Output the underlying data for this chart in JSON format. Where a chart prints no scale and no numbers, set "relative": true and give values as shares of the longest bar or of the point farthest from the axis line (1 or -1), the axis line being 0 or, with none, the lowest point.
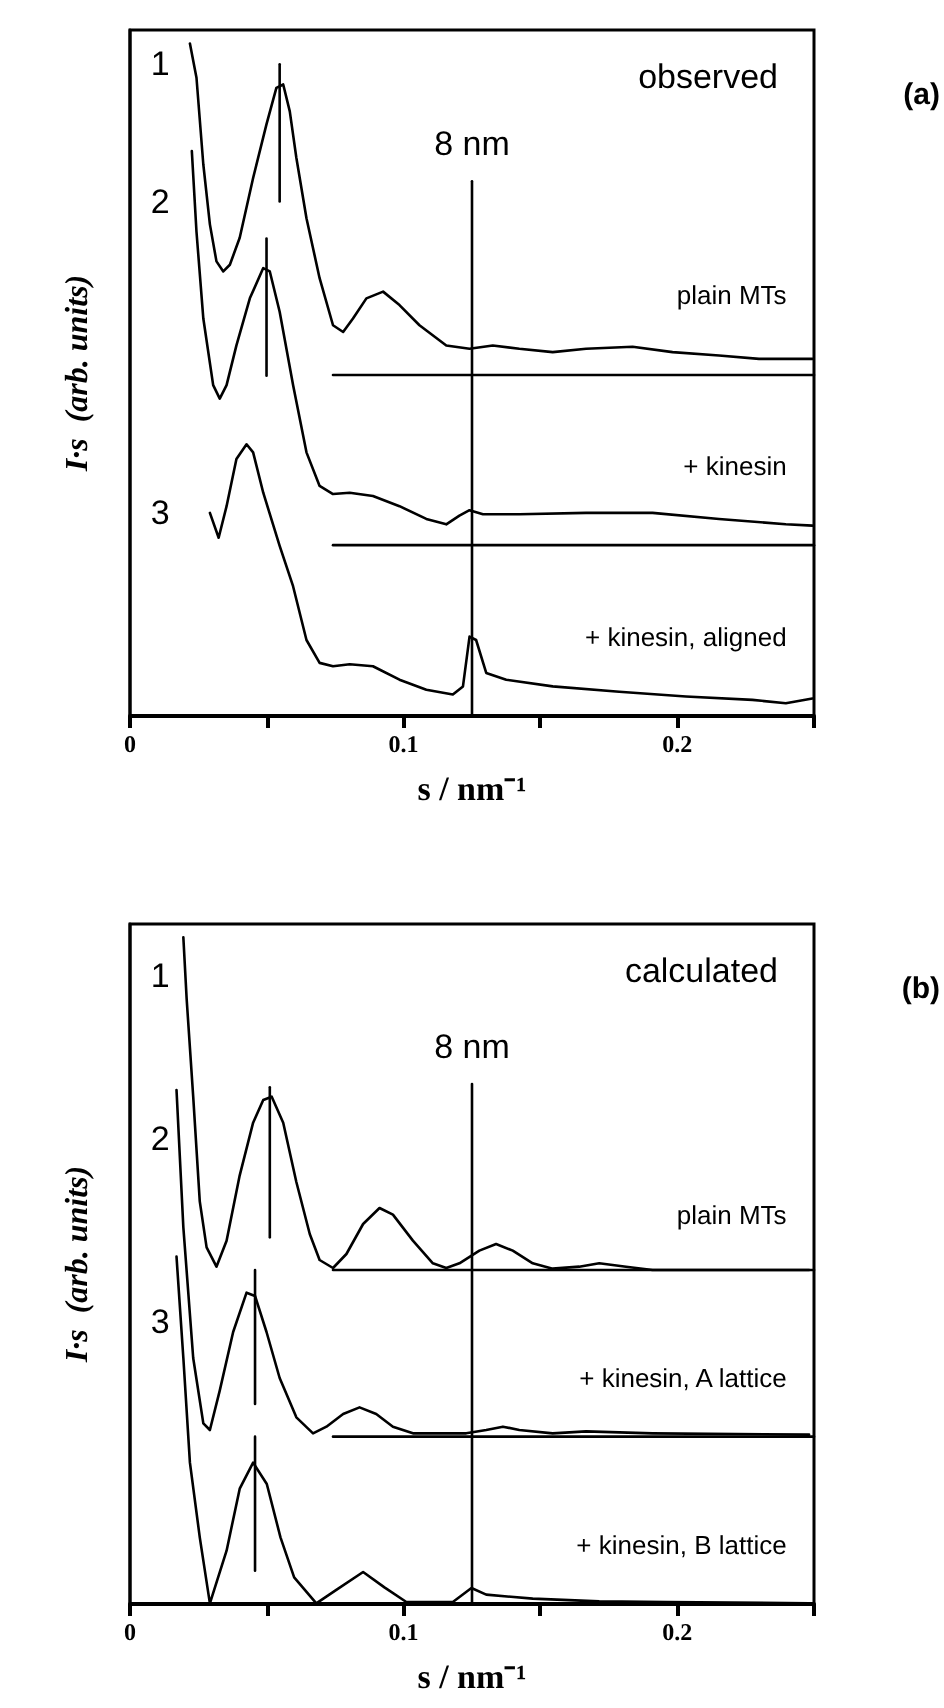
{
  "chart_data": [
    {
      "type": "line",
      "title": "observed",
      "xlabel": "s / nm⁻¹",
      "ylabel": "I·s  (arb. units)",
      "relative": true,
      "marker": "none",
      "line_style": "solid",
      "tick_labels": "x",
      "grid": false,
      "xlim": [
        0,
        0.25
      ],
      "xticks": [
        0,
        {
          "value": 0.05,
          "label": null
        },
        0.1,
        {
          "value": 0.15,
          "label": null
        },
        0.2,
        {
          "value": 0.25,
          "label": null
        }
      ],
      "series": [
        {
          "color": "#000000",
          "x": [
            0.0219,
            0.0243,
            0.0268,
            0.0292,
            0.0316,
            0.0341,
            0.0365,
            0.0401,
            0.045,
            0.0499,
            0.0535,
            0.056,
            0.0584,
            0.0608,
            0.0645,
            0.0693,
            0.0742,
            0.0779,
            0.0815,
            0.0864,
            0.0925,
            0.0985,
            0.1058,
            0.1156,
            0.1241,
            0.1326,
            0.1423,
            0.1545,
            0.1667,
            0.1837,
            0.1983,
            0.2153,
            0.2299,
            0.2494
          ],
          "values": [
            1.0,
            0.949,
            0.82,
            0.731,
            0.676,
            0.661,
            0.671,
            0.711,
            0.8,
            0.88,
            0.934,
            0.939,
            0.899,
            0.83,
            0.74,
            0.651,
            0.581,
            0.571,
            0.591,
            0.621,
            0.631,
            0.611,
            0.581,
            0.551,
            0.546,
            0.551,
            0.546,
            0.541,
            0.546,
            0.549,
            0.541,
            0.536,
            0.531,
            0.531
          ]
        },
        {
          "color": "#000000",
          "x": [
            0.0226,
            0.0243,
            0.0268,
            0.0304,
            0.0328,
            0.0353,
            0.0389,
            0.0438,
            0.0487,
            0.0511,
            0.0547,
            0.0596,
            0.0645,
            0.0693,
            0.0742,
            0.0803,
            0.0888,
            0.0985,
            0.1083,
            0.1156,
            0.1204,
            0.1241,
            0.129,
            0.1423,
            0.1667,
            0.191,
            0.2153,
            0.2397,
            0.2494
          ],
          "values": [
            0.84,
            0.72,
            0.591,
            0.492,
            0.472,
            0.492,
            0.551,
            0.621,
            0.666,
            0.661,
            0.601,
            0.492,
            0.392,
            0.342,
            0.33,
            0.332,
            0.327,
            0.312,
            0.293,
            0.285,
            0.298,
            0.306,
            0.3,
            0.3,
            0.302,
            0.302,
            0.293,
            0.285,
            0.283
          ]
        },
        {
          "color": "#000000",
          "x": [
            0.0292,
            0.0324,
            0.0353,
            0.0389,
            0.0426,
            0.045,
            0.0487,
            0.0547,
            0.0596,
            0.0645,
            0.0693,
            0.0742,
            0.0803,
            0.0888,
            0.0985,
            0.1083,
            0.118,
            0.1217,
            0.1241,
            0.1265,
            0.1302,
            0.1375,
            0.1545,
            0.1788,
            0.2032,
            0.2275,
            0.2397,
            0.2494
          ],
          "values": [
            0.302,
            0.265,
            0.312,
            0.382,
            0.404,
            0.392,
            0.332,
            0.253,
            0.193,
            0.113,
            0.079,
            0.074,
            0.077,
            0.074,
            0.054,
            0.039,
            0.032,
            0.044,
            0.118,
            0.113,
            0.064,
            0.054,
            0.044,
            0.036,
            0.029,
            0.024,
            0.019,
            0.026
          ]
        },
        {
          "color": "#000000",
          "x": [
            0.0742,
            0.25
          ],
          "values": [
            0.507,
            0.507
          ]
        },
        {
          "color": "#000000",
          "x": [
            0.0742,
            0.25
          ],
          "values": [
            0.254,
            0.254
          ]
        },
        {
          "color": "#000000",
          "x": [
            0.125,
            0.125
          ],
          "values": [
            0,
            0.795
          ]
        },
        {
          "color": "#000000",
          "x": [
            0.0547,
            0.0547
          ],
          "values": [
            0.765,
            0.969
          ]
        },
        {
          "color": "#000000",
          "x": [
            0.0499,
            0.0499
          ],
          "values": [
            0.506,
            0.71
          ]
        }
      ],
      "annotations": [
        "1",
        "2",
        "3",
        "8 nm",
        "plain MTs",
        "+ kinesin",
        "+ kinesin, aligned",
        "(a)"
      ]
    },
    {
      "type": "line",
      "title": "calculated",
      "xlabel": "s / nm⁻¹",
      "ylabel": "I·s  (arb. units)",
      "relative": true,
      "marker": "none",
      "line_style": "solid",
      "tick_labels": "x",
      "grid": false,
      "xlim": [
        0,
        0.25
      ],
      "xticks": [
        0,
        {
          "value": 0.05,
          "label": null
        },
        0.1,
        {
          "value": 0.15,
          "label": null
        },
        0.2,
        {
          "value": 0.25,
          "label": null
        }
      ],
      "series": [
        {
          "color": "#000000",
          "x": [
            0.0195,
            0.0207,
            0.0231,
            0.0255,
            0.028,
            0.0316,
            0.0353,
            0.0401,
            0.045,
            0.0487,
            0.0518,
            0.056,
            0.0608,
            0.0657,
            0.0693,
            0.0742,
            0.0791,
            0.0852,
            0.0912,
            0.0961,
            0.1034,
            0.1107,
            0.1156,
            0.1204,
            0.1277,
            0.1338,
            0.1399,
            0.1472,
            0.1545,
            0.1642,
            0.1715,
            0.1813,
            0.191,
            0.2482
          ],
          "values": [
            1.0,
            0.908,
            0.761,
            0.604,
            0.535,
            0.506,
            0.545,
            0.643,
            0.722,
            0.756,
            0.761,
            0.722,
            0.633,
            0.555,
            0.516,
            0.504,
            0.525,
            0.57,
            0.594,
            0.584,
            0.545,
            0.511,
            0.504,
            0.511,
            0.53,
            0.54,
            0.53,
            0.511,
            0.503,
            0.506,
            0.511,
            0.506,
            0.501,
            0.501
          ]
        },
        {
          "color": "#000000",
          "x": [
            0.017,
            0.0195,
            0.0231,
            0.0268,
            0.0292,
            0.0328,
            0.0377,
            0.0426,
            0.0457,
            0.0499,
            0.0547,
            0.0608,
            0.0669,
            0.0718,
            0.0779,
            0.0839,
            0.09,
            0.0961,
            0.1034,
            0.1131,
            0.1229,
            0.1302,
            0.1363,
            0.1423,
            0.1545,
            0.1667,
            0.191,
            0.2482
          ],
          "values": [
            0.771,
            0.565,
            0.369,
            0.271,
            0.261,
            0.32,
            0.408,
            0.467,
            0.462,
            0.408,
            0.339,
            0.28,
            0.256,
            0.266,
            0.285,
            0.295,
            0.285,
            0.266,
            0.256,
            0.256,
            0.256,
            0.261,
            0.266,
            0.261,
            0.256,
            0.259,
            0.256,
            0.254
          ]
        },
        {
          "color": "#000000",
          "x": [
            0.017,
            0.0195,
            0.0219,
            0.0255,
            0.0292,
            0.0353,
            0.0401,
            0.045,
            0.05,
            0.055,
            0.06,
            0.0681,
            0.075,
            0.0852,
            0.093,
            0.101,
            0.118,
            0.1248,
            0.1302,
            0.1472,
            0.1715,
            0.196,
            0.2482
          ],
          "values": [
            0.521,
            0.369,
            0.212,
            0.1,
            0.001,
            0.08,
            0.173,
            0.212,
            0.18,
            0.1,
            0.04,
            0.001,
            0.02,
            0.048,
            0.025,
            0.003,
            0.003,
            0.024,
            0.014,
            0.008,
            0.004,
            0.003,
            0.001
          ]
        },
        {
          "color": "#000000",
          "x": [
            0.0742,
            0.25
          ],
          "values": [
            0.501,
            0.501
          ]
        },
        {
          "color": "#000000",
          "x": [
            0.0742,
            0.25
          ],
          "values": [
            0.251,
            0.251
          ]
        },
        {
          "color": "#000000",
          "x": [
            0.125,
            0.125
          ],
          "values": [
            0,
            0.78
          ]
        },
        {
          "color": "#000000",
          "x": [
            0.0511,
            0.0511
          ],
          "values": [
            0.55,
            0.775
          ]
        },
        {
          "color": "#000000",
          "x": [
            0.0457,
            0.0457
          ],
          "values": [
            0.3,
            0.501
          ]
        },
        {
          "color": "#000000",
          "x": [
            0.0457,
            0.0457
          ],
          "values": [
            0.05,
            0.251
          ]
        }
      ],
      "annotations": [
        "1",
        "2",
        "3",
        "8 nm",
        "plain MTs",
        "+ kinesin, A lattice",
        "+ kinesin, B lattice",
        "(b)"
      ]
    }
  ]
}
